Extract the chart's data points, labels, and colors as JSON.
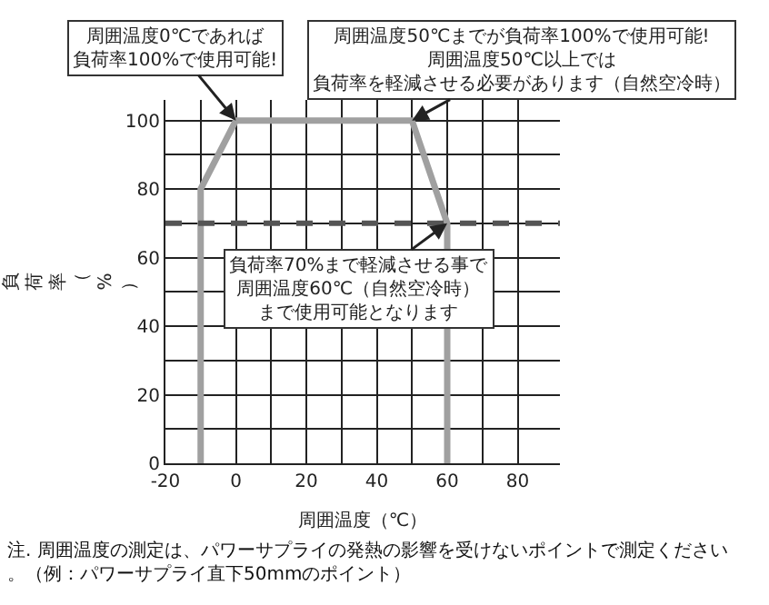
{
  "chart_data": {
    "type": "line",
    "xlabel": "周囲温度（℃）",
    "ylabel": "負荷率（%）",
    "x": [
      -10,
      -10,
      0,
      50,
      60,
      60
    ],
    "series": [
      {
        "color": "#a0a0a0",
        "values": [
          0,
          80,
          100,
          100,
          70,
          0
        ]
      }
    ],
    "xlim": [
      -20,
      92
    ],
    "xticks": [
      -20,
      {
        "value": -10,
        "label": null
      },
      0,
      {
        "value": 10,
        "label": null
      },
      20,
      {
        "value": 30,
        "label": null
      },
      40,
      {
        "value": 50,
        "label": null
      },
      60,
      {
        "value": 70,
        "label": null
      },
      80
    ],
    "ylim": [
      0,
      106
    ],
    "yticks": [
      0,
      {
        "value": 10,
        "label": null
      },
      20,
      {
        "value": 30,
        "label": null
      },
      40,
      {
        "value": 50,
        "label": null
      },
      60,
      {
        "value": 70,
        "label": null
      },
      80,
      {
        "value": 90,
        "label": null
      },
      100
    ],
    "grid": true,
    "marker": "none",
    "line_style": "solid",
    "legend": false,
    "ref_lines": [
      {
        "axis": "y",
        "value": 70,
        "color": "#555555",
        "line_style": "dashed"
      }
    ],
    "annotations": [
      {
        "text": "周囲温度0℃であれば負荷率100%で使用可能!",
        "x": 0,
        "y": 100
      },
      {
        "text": "周囲温度50℃までが負荷率100%で使用可能!周囲温度50℃以上では負荷率を軽減させる必要があります（自然空冷時）",
        "x": 50,
        "y": 100
      },
      {
        "text": "負荷率70%まで軽減させる事で周囲温度60℃（自然空冷時）まで使用可能となります",
        "x": 60,
        "y": 70
      },
      "注. 周囲温度の測定は、パワーサプライの発熱の影響を受けないポイントで測定ください。（例：パワーサプライ直下50mmのポイント）"
    ]
  }
}
